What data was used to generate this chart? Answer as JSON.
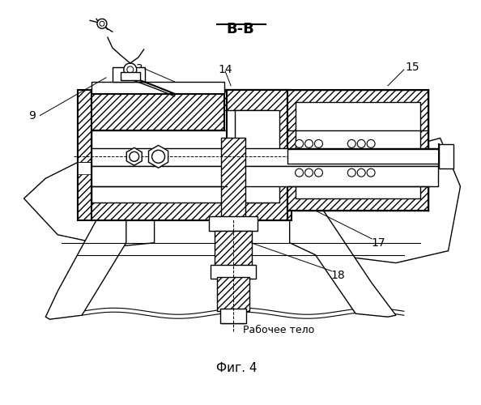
{
  "title": "В-В",
  "fig_label": "Фиг. 4",
  "working_body_label": "Рабочее тело",
  "bg_color": "#ffffff",
  "line_color": "#000000",
  "figsize": [
    5.94,
    5.0
  ],
  "dpi": 100
}
